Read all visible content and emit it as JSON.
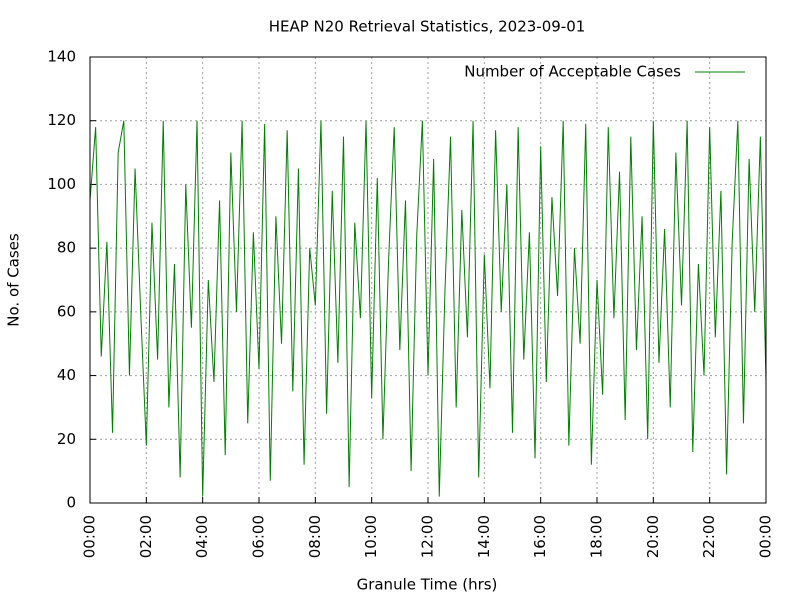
{
  "chart_data": {
    "type": "line",
    "title": "HEAP N20 Retrieval Statistics, 2023-09-01",
    "xlabel": "Granule Time (hrs)",
    "ylabel": "No. of Cases",
    "xlim": [
      0,
      24
    ],
    "ylim": [
      0,
      140
    ],
    "xticks": [
      {
        "value": 0,
        "label": "00:00"
      },
      {
        "value": 2,
        "label": "02:00"
      },
      {
        "value": 4,
        "label": "04:00"
      },
      {
        "value": 6,
        "label": "06:00"
      },
      {
        "value": 8,
        "label": "08:00"
      },
      {
        "value": 10,
        "label": "10:00"
      },
      {
        "value": 12,
        "label": "12:00"
      },
      {
        "value": 14,
        "label": "14:00"
      },
      {
        "value": 16,
        "label": "16:00"
      },
      {
        "value": 18,
        "label": "18:00"
      },
      {
        "value": 20,
        "label": "20:00"
      },
      {
        "value": 22,
        "label": "22:00"
      },
      {
        "value": 24,
        "label": "00:00"
      }
    ],
    "yticks": [
      0,
      20,
      40,
      60,
      80,
      100,
      120,
      140
    ],
    "grid": true,
    "legend": "top-right",
    "x": [
      0,
      0.2,
      0.4,
      0.6,
      0.8,
      1,
      1.2,
      1.4,
      1.6,
      1.8,
      2,
      2.2,
      2.4,
      2.6,
      2.8,
      3,
      3.2,
      3.4,
      3.6,
      3.8,
      4,
      4.2,
      4.4,
      4.6,
      4.8,
      5,
      5.2,
      5.4,
      5.6,
      5.8,
      6,
      6.2,
      6.4,
      6.6,
      6.8,
      7,
      7.2,
      7.4,
      7.6,
      7.8,
      8,
      8.2,
      8.4,
      8.6,
      8.8,
      9,
      9.2,
      9.4,
      9.6,
      9.8,
      10,
      10.2,
      10.4,
      10.6,
      10.8,
      11,
      11.2,
      11.4,
      11.6,
      11.8,
      12,
      12.2,
      12.4,
      12.6,
      12.8,
      13,
      13.2,
      13.4,
      13.6,
      13.8,
      14,
      14.2,
      14.4,
      14.6,
      14.8,
      15,
      15.2,
      15.4,
      15.6,
      15.8,
      16,
      16.2,
      16.4,
      16.6,
      16.8,
      17,
      17.2,
      17.4,
      17.6,
      17.8,
      18,
      18.2,
      18.4,
      18.6,
      18.8,
      19,
      19.2,
      19.4,
      19.6,
      19.8,
      20,
      20.2,
      20.4,
      20.6,
      20.8,
      21,
      21.2,
      21.4,
      21.6,
      21.8,
      22,
      22.2,
      22.4,
      22.6,
      22.8,
      23,
      23.2,
      23.4,
      23.6,
      23.8,
      24
    ],
    "series": [
      {
        "name": "Number of Acceptable Cases",
        "color": "#008000",
        "values": [
          95,
          118,
          46,
          82,
          22,
          110,
          120,
          40,
          105,
          60,
          18,
          88,
          45,
          120,
          30,
          75,
          8,
          100,
          55,
          120,
          2,
          70,
          38,
          95,
          15,
          110,
          60,
          120,
          25,
          85,
          42,
          119,
          7,
          90,
          50,
          117,
          35,
          105,
          12,
          80,
          62,
          120,
          28,
          98,
          44,
          115,
          5,
          88,
          58,
          120,
          33,
          102,
          20,
          76,
          118,
          48,
          95,
          10,
          84,
          120,
          40,
          108,
          2,
          66,
          115,
          30,
          92,
          52,
          120,
          8,
          78,
          36,
          117,
          60,
          100,
          22,
          118,
          45,
          85,
          14,
          112,
          38,
          96,
          65,
          120,
          18,
          80,
          50,
          119,
          12,
          70,
          34,
          118,
          58,
          104,
          26,
          115,
          48,
          90,
          20,
          120,
          44,
          86,
          30,
          110,
          62,
          120,
          16,
          75,
          40,
          118,
          52,
          98,
          9,
          82,
          120,
          25,
          108,
          60,
          115,
          38
        ]
      }
    ]
  }
}
